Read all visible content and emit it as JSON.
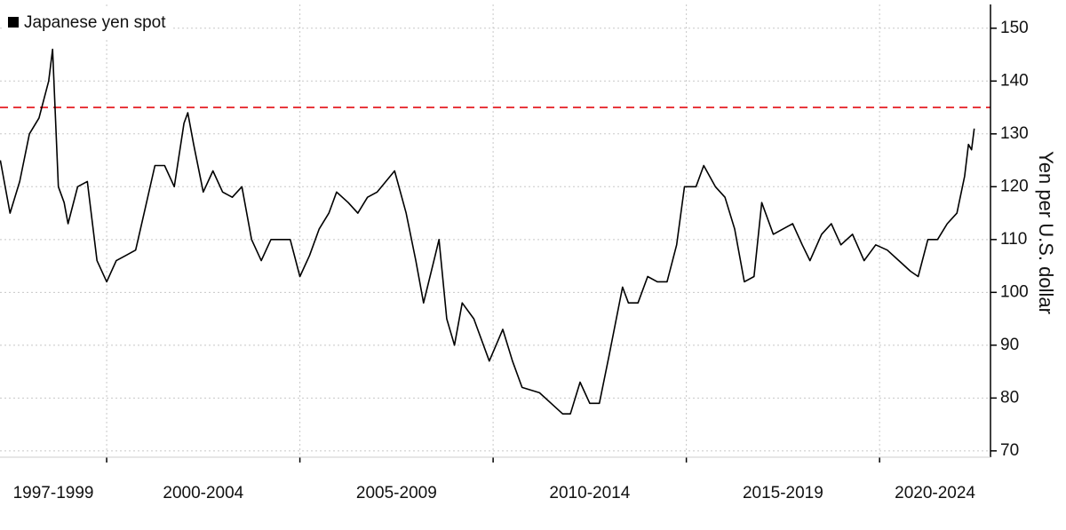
{
  "chart_data": {
    "type": "line",
    "legend": "Japanese yen spot",
    "y_axis_label": "Yen per U.S. dollar",
    "x_periods": [
      "1997-1999",
      "2000-2004",
      "2005-2009",
      "2010-2014",
      "2015-2019",
      "2020-2024"
    ],
    "xlim": [
      1997.24,
      2022.87
    ],
    "xticks": [
      2000,
      2005,
      2010,
      2015,
      2020
    ],
    "ylim": [
      68.8,
      154.5
    ],
    "yticks": [
      70,
      80,
      90,
      100,
      110,
      120,
      130,
      140,
      150
    ],
    "grid": true,
    "reference_line": {
      "value": 135,
      "color": "#e8383d"
    },
    "series": [
      {
        "name": "Japanese yen spot",
        "color": "#000000",
        "x": [
          1997.25,
          1997.5,
          1997.75,
          1998.0,
          1998.25,
          1998.5,
          1998.6,
          1998.75,
          1998.9,
          1999.0,
          1999.25,
          1999.5,
          1999.75,
          2000.0,
          2000.25,
          2000.5,
          2000.75,
          2001.0,
          2001.25,
          2001.5,
          2001.75,
          2002.0,
          2002.1,
          2002.25,
          2002.5,
          2002.75,
          2003.0,
          2003.25,
          2003.5,
          2003.75,
          2004.0,
          2004.25,
          2004.5,
          2004.75,
          2005.0,
          2005.25,
          2005.5,
          2005.75,
          2005.95,
          2006.25,
          2006.5,
          2006.75,
          2007.0,
          2007.45,
          2007.75,
          2008.0,
          2008.2,
          2008.5,
          2008.6,
          2008.8,
          2009.0,
          2009.2,
          2009.5,
          2009.9,
          2010.25,
          2010.5,
          2010.75,
          2011.2,
          2011.5,
          2011.8,
          2012.0,
          2012.25,
          2012.5,
          2012.75,
          2013.0,
          2013.35,
          2013.5,
          2013.75,
          2014.0,
          2014.25,
          2014.5,
          2014.75,
          2014.95,
          2015.25,
          2015.45,
          2015.75,
          2016.0,
          2016.25,
          2016.5,
          2016.75,
          2016.95,
          2017.25,
          2017.5,
          2017.75,
          2018.0,
          2018.2,
          2018.5,
          2018.75,
          2019.0,
          2019.3,
          2019.6,
          2019.9,
          2020.2,
          2020.5,
          2020.8,
          2021.0,
          2021.25,
          2021.5,
          2021.75,
          2022.0,
          2022.2,
          2022.3,
          2022.38,
          2022.45
        ],
        "values": [
          125,
          115,
          121,
          130,
          133,
          140,
          146,
          120,
          117,
          113,
          120,
          121,
          106,
          102,
          106,
          107,
          108,
          116,
          124,
          124,
          120,
          132,
          134,
          128,
          119,
          123,
          119,
          118,
          120,
          110,
          106,
          110,
          110,
          110,
          103,
          107,
          112,
          115,
          119,
          117,
          115,
          118,
          119,
          123,
          115,
          106,
          98,
          107,
          110,
          95,
          90,
          98,
          95,
          87,
          93,
          87,
          82,
          81,
          79,
          77,
          77,
          83,
          79,
          79,
          88,
          101,
          98,
          98,
          103,
          102,
          102,
          109,
          120,
          120,
          124,
          120,
          118,
          112,
          102,
          103,
          117,
          111,
          112,
          113,
          109,
          106,
          111,
          113,
          109,
          111,
          106,
          109,
          108,
          106,
          104,
          103,
          110,
          110,
          113,
          115,
          122,
          128,
          127,
          131
        ]
      }
    ]
  }
}
